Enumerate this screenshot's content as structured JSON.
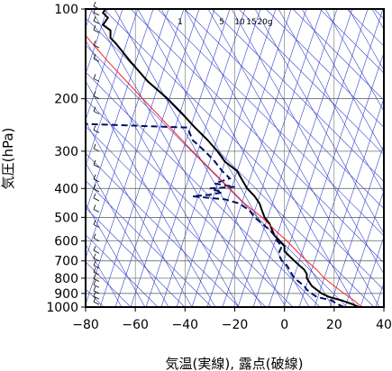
{
  "chart_data": {
    "type": "line",
    "title": "",
    "xlabel": "気温(実線), 露点(破線)",
    "ylabel": "気圧(hPa)",
    "xlim": [
      -80,
      40
    ],
    "ylim": [
      1000,
      100
    ],
    "y_scale": "log",
    "x_ticks": [
      -80,
      -60,
      -40,
      -20,
      0,
      20,
      40
    ],
    "x_tick_labels": [
      "−80",
      "−60",
      "−40",
      "−20",
      "0",
      "20",
      "40"
    ],
    "y_ticks": [
      100,
      200,
      300,
      400,
      500,
      600,
      700,
      800,
      900,
      1000
    ],
    "y_tick_labels": [
      "100",
      "200",
      "300",
      "400",
      "500",
      "600",
      "700",
      "800",
      "900",
      "1000"
    ],
    "grid": true,
    "mixing_ratio_labels": [
      {
        "text": "1",
        "value": 1
      },
      {
        "text": "5",
        "value": 5
      },
      {
        "text": "10",
        "value": 10
      },
      {
        "text": "15",
        "value": 15
      },
      {
        "text": "20g",
        "value": 20
      }
    ],
    "colors": {
      "temperature": "#000000",
      "dewpoint": "#001060",
      "parcel": "#ff2020",
      "background": "#3344cc",
      "grid": "#555555"
    },
    "series": [
      {
        "key": "temperature",
        "style": "solid",
        "points": [
          [
            30,
            1000
          ],
          [
            27,
            975
          ],
          [
            23,
            950
          ],
          [
            18,
            925
          ],
          [
            15,
            900
          ],
          [
            13,
            875
          ],
          [
            11,
            850
          ],
          [
            10,
            825
          ],
          [
            9,
            800
          ],
          [
            9,
            775
          ],
          [
            8,
            750
          ],
          [
            6,
            725
          ],
          [
            4,
            700
          ],
          [
            2,
            675
          ],
          [
            0,
            650
          ],
          [
            0,
            625
          ],
          [
            -2,
            600
          ],
          [
            -4,
            575
          ],
          [
            -5,
            550
          ],
          [
            -6,
            525
          ],
          [
            -8,
            500
          ],
          [
            -9,
            475
          ],
          [
            -10,
            450
          ],
          [
            -12,
            425
          ],
          [
            -15,
            400
          ],
          [
            -17,
            375
          ],
          [
            -19,
            350
          ],
          [
            -24,
            325
          ],
          [
            -27,
            300
          ],
          [
            -31,
            275
          ],
          [
            -36,
            250
          ],
          [
            -41,
            225
          ],
          [
            -47,
            200
          ],
          [
            -55,
            175
          ],
          [
            -62,
            150
          ],
          [
            -68,
            130
          ],
          [
            -70,
            125
          ],
          [
            -70,
            118
          ],
          [
            -73,
            113
          ],
          [
            -71,
            107
          ],
          [
            -73,
            103
          ],
          [
            -72,
            100
          ]
        ]
      },
      {
        "key": "dewpoint",
        "style": "dashed",
        "points": [
          [
            24,
            1000
          ],
          [
            21,
            975
          ],
          [
            19,
            950
          ],
          [
            13,
            925
          ],
          [
            11,
            900
          ],
          [
            9,
            875
          ],
          [
            8,
            850
          ],
          [
            6,
            825
          ],
          [
            4,
            800
          ],
          [
            3,
            775
          ],
          [
            2,
            750
          ],
          [
            1,
            725
          ],
          [
            -1,
            700
          ],
          [
            -2,
            675
          ],
          [
            -2,
            650
          ],
          [
            -1,
            625
          ],
          [
            -3,
            600
          ],
          [
            -4,
            575
          ],
          [
            -6,
            550
          ],
          [
            -9,
            525
          ],
          [
            -12,
            500
          ],
          [
            -14,
            475
          ],
          [
            -18,
            450
          ],
          [
            -24,
            435
          ],
          [
            -37,
            425
          ],
          [
            -30,
            420
          ],
          [
            -25,
            412
          ],
          [
            -30,
            400
          ],
          [
            -20,
            395
          ],
          [
            -28,
            385
          ],
          [
            -22,
            370
          ],
          [
            -25,
            350
          ],
          [
            -28,
            325
          ],
          [
            -32,
            300
          ],
          [
            -37,
            275
          ],
          [
            -39,
            250
          ],
          [
            -80,
            243
          ]
        ]
      },
      {
        "key": "parcel",
        "style": "solid",
        "points": [
          [
            31,
            1000
          ],
          [
            28,
            950
          ],
          [
            24,
            900
          ],
          [
            20,
            850
          ],
          [
            16,
            800
          ],
          [
            13,
            750
          ],
          [
            9,
            700
          ],
          [
            5,
            650
          ],
          [
            1,
            600
          ],
          [
            -4,
            550
          ],
          [
            -9,
            500
          ],
          [
            -16,
            450
          ],
          [
            -22,
            400
          ],
          [
            -29,
            350
          ],
          [
            -37,
            300
          ],
          [
            -46,
            250
          ],
          [
            -57,
            200
          ],
          [
            -71,
            150
          ],
          [
            -81,
            120
          ]
        ]
      }
    ]
  }
}
